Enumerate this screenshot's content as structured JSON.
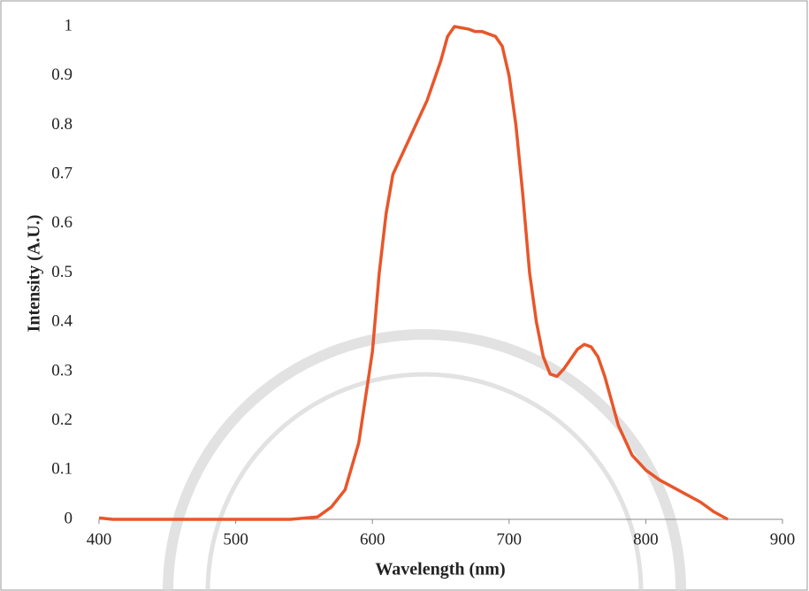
{
  "chart_data": {
    "type": "line",
    "xlabel": "Wavelength (nm)",
    "ylabel": "Intensity (A.U.)",
    "x": [
      400,
      410,
      450,
      500,
      540,
      560,
      570,
      580,
      590,
      600,
      605,
      610,
      615,
      620,
      630,
      640,
      650,
      655,
      660,
      670,
      675,
      680,
      690,
      695,
      700,
      705,
      710,
      715,
      720,
      725,
      730,
      735,
      740,
      745,
      750,
      755,
      760,
      765,
      770,
      775,
      780,
      790,
      800,
      810,
      820,
      830,
      840,
      850,
      860
    ],
    "series": [
      {
        "color": "#e8562a",
        "values": [
          0.003,
          0,
          0,
          0,
          0,
          0.005,
          0.025,
          0.06,
          0.155,
          0.34,
          0.5,
          0.62,
          0.7,
          0.73,
          0.79,
          0.85,
          0.93,
          0.98,
          1.0,
          0.995,
          0.99,
          0.99,
          0.98,
          0.96,
          0.9,
          0.8,
          0.66,
          0.5,
          0.4,
          0.33,
          0.295,
          0.29,
          0.305,
          0.325,
          0.345,
          0.355,
          0.35,
          0.33,
          0.29,
          0.24,
          0.19,
          0.13,
          0.1,
          0.08,
          0.065,
          0.05,
          0.035,
          0.015,
          0
        ]
      }
    ],
    "xlim": [
      400,
      900
    ],
    "xticks": [
      400,
      500,
      600,
      700,
      800,
      900
    ],
    "ylim": [
      0,
      1
    ],
    "yticks": [
      0,
      0.1,
      0.2,
      0.3,
      0.4,
      0.5,
      0.6,
      0.7,
      0.8,
      0.9,
      1
    ],
    "grid": false
  }
}
